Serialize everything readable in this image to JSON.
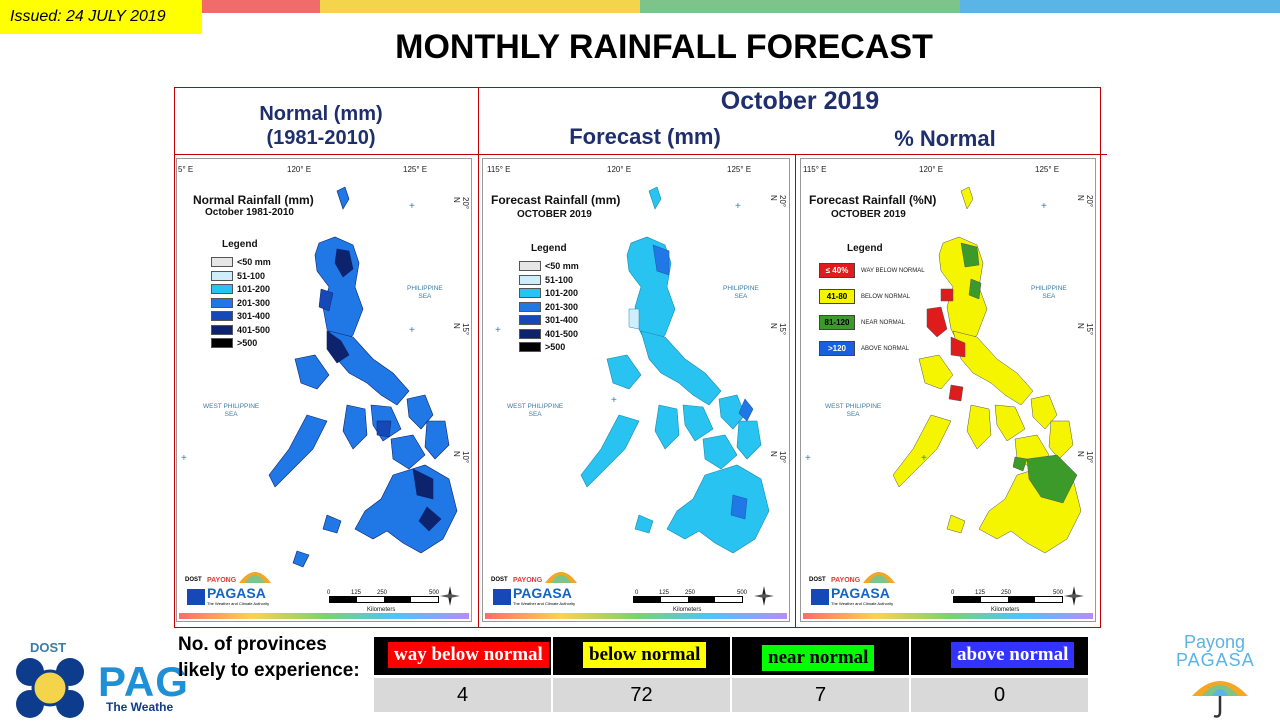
{
  "header": {
    "issued": "Issued: 24 JULY 2019",
    "title": "MONTHLY RAINFALL FORECAST",
    "stripe_colors": [
      "#f26b6b",
      "#f4d44a",
      "#7cc48a",
      "#5ab4e6"
    ]
  },
  "columns": {
    "normal": {
      "line1": "Normal (mm)",
      "line2": "(1981-2010)"
    },
    "period": "October 2019",
    "forecast": "Forecast (mm)",
    "percent": "% Normal"
  },
  "maps": {
    "ticks": {
      "lon_a": "115° E",
      "lon_a_cut": "5° E",
      "lon_b": "120° E",
      "lon_c": "125° E",
      "lat_20": "20° N",
      "lat_15": "15° N",
      "lat_10": "10° N"
    },
    "seas": {
      "philippine_l1": "PHILIPPINE",
      "philippine_l2": "SEA",
      "west_l1": "WEST PHILIPPINE",
      "west_l2": "SEA"
    },
    "scale": {
      "z": "0",
      "a": "125",
      "b": "250",
      "c": "500",
      "unit": "Kilometers"
    },
    "logo": {
      "dost": "DOST",
      "payong": "PAYONG",
      "pagasa": "PAGASA",
      "tagline": "The Weather and Climate Authority"
    },
    "normal_panel": {
      "title": "Normal Rainfall (mm)",
      "subtitle": "October 1981-2010",
      "legend_title": "Legend",
      "legend": [
        {
          "label": "<50 mm",
          "color": "#e6e6e6"
        },
        {
          "label": "51-100",
          "color": "#cfeefc"
        },
        {
          "label": "101-200",
          "color": "#28c3f0"
        },
        {
          "label": "201-300",
          "color": "#1f78e6"
        },
        {
          "label": "301-400",
          "color": "#1748b8"
        },
        {
          "label": "401-500",
          "color": "#0d236e"
        },
        {
          "label": ">500",
          "color": "#000000"
        }
      ]
    },
    "forecast_panel": {
      "title": "Forecast Rainfall (mm)",
      "subtitle": "OCTOBER 2019",
      "legend_title": "Legend",
      "legend": [
        {
          "label": "<50 mm",
          "color": "#e6e6e6"
        },
        {
          "label": "51-100",
          "color": "#cfeefc"
        },
        {
          "label": "101-200",
          "color": "#28c3f0"
        },
        {
          "label": "201-300",
          "color": "#1f78e6"
        },
        {
          "label": "301-400",
          "color": "#1748b8"
        },
        {
          "label": "401-500",
          "color": "#0d236e"
        },
        {
          "label": ">500",
          "color": "#000000"
        }
      ]
    },
    "percent_panel": {
      "title": "Forecast Rainfall (%N)",
      "subtitle": "OCTOBER 2019",
      "legend_title": "Legend",
      "legend": [
        {
          "box": "≤ 40%",
          "desc": "WAY BELOW NORMAL",
          "color": "#e01b1b",
          "text_color": "#ffffff"
        },
        {
          "box": "41-80",
          "desc": "BELOW NORMAL",
          "color": "#f5f500",
          "text_color": "#000000"
        },
        {
          "box": "81-120",
          "desc": "NEAR NORMAL",
          "color": "#3b9a2a",
          "text_color": "#000000"
        },
        {
          "box": ">120",
          "desc": "ABOVE NORMAL",
          "color": "#1a5fe0",
          "text_color": "#ffffff"
        }
      ]
    }
  },
  "summary": {
    "question": "No. of provinces likely to experience:",
    "categories": [
      {
        "label": "way below normal",
        "count": "4",
        "bg": "#ff0000",
        "fg": "#ffffff"
      },
      {
        "label": "below normal",
        "count": "72",
        "bg": "#ffff00",
        "fg": "#000000"
      },
      {
        "label": "near normal",
        "count": "7",
        "bg": "#00ff00",
        "fg": "#000000"
      },
      {
        "label": "above normal",
        "count": "0",
        "bg": "#3333ff",
        "fg": "#ffffff"
      }
    ]
  },
  "footer": {
    "left_logo_dost": "DOST",
    "left_logo_text": "PAG",
    "left_logo_tagline": "The Weathe",
    "right_logo_l1": "Payong",
    "right_logo_l2": "PAGASA"
  }
}
